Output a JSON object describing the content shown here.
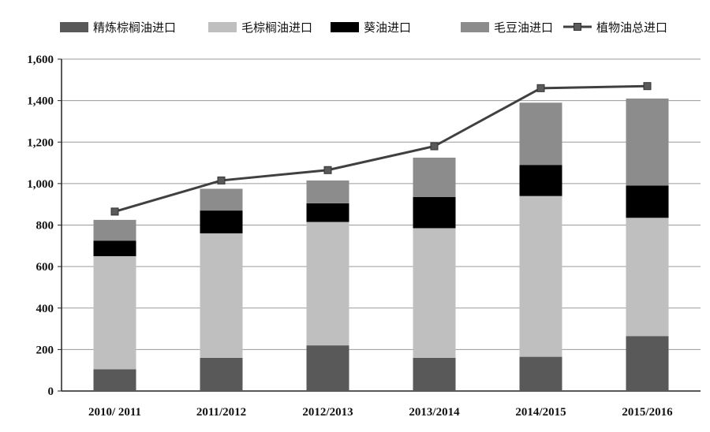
{
  "chart_data": {
    "type": "bar",
    "stacked": true,
    "categories": [
      "2010/ 2011",
      "2011/2012",
      "2012/2013",
      "2013/2014",
      "2014/2015",
      "2015/2016"
    ],
    "series": [
      {
        "name": "精炼棕榈油进口",
        "color": "#595959",
        "values": [
          105,
          160,
          220,
          160,
          165,
          265
        ]
      },
      {
        "name": "毛棕榈油进口",
        "color": "#bfbfbf",
        "values": [
          545,
          600,
          595,
          625,
          775,
          570
        ]
      },
      {
        "name": "葵油进口",
        "color": "#000000",
        "values": [
          75,
          110,
          90,
          150,
          150,
          155
        ]
      },
      {
        "name": "毛豆油进口",
        "color": "#8c8c8c",
        "values": [
          100,
          105,
          110,
          190,
          300,
          420
        ]
      }
    ],
    "line_series": {
      "name": "植物油总进口",
      "color": "#404040",
      "values": [
        865,
        1015,
        1065,
        1180,
        1460,
        1470
      ]
    },
    "yticks": [
      "0",
      "200",
      "400",
      "600",
      "800",
      "1,000",
      "1,200",
      "1,400",
      "1,600"
    ],
    "ylim": [
      0,
      1600
    ],
    "grid": true,
    "legend": "top"
  }
}
